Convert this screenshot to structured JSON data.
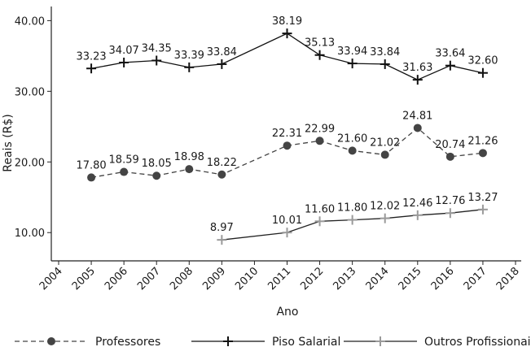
{
  "chart_data": {
    "type": "line",
    "xlabel": "Ano",
    "ylabel": "Reais (R$)",
    "x_ticks": [
      2004,
      2005,
      2006,
      2007,
      2008,
      2009,
      2010,
      2011,
      2012,
      2013,
      2014,
      2015,
      2016,
      2017,
      2018
    ],
    "y_ticks": [
      "10.00",
      "20.00",
      "30.00",
      "40.00"
    ],
    "xlim": [
      2004,
      2018
    ],
    "ylim": [
      6,
      42
    ],
    "legend_position": "bottom",
    "grid": false,
    "series": [
      {
        "name": "Professores",
        "style": "dashed",
        "marker": "circle",
        "color": "#444444",
        "x": [
          2005,
          2006,
          2007,
          2008,
          2009,
          2011,
          2012,
          2013,
          2014,
          2015,
          2016,
          2017
        ],
        "values": [
          17.8,
          18.59,
          18.05,
          18.98,
          18.22,
          22.31,
          22.99,
          21.6,
          21.02,
          24.81,
          20.74,
          21.26
        ],
        "labels": [
          "17.80",
          "18.59",
          "18.05",
          "18.98",
          "18.22",
          "22.31",
          "22.99",
          "21.60",
          "21.02",
          "24.81",
          "20.74",
          "21.26"
        ]
      },
      {
        "name": "Piso Salarial",
        "style": "solid",
        "marker": "plus",
        "color": "#111111",
        "x": [
          2005,
          2006,
          2007,
          2008,
          2009,
          2011,
          2012,
          2013,
          2014,
          2015,
          2016,
          2017
        ],
        "values": [
          33.23,
          34.07,
          34.35,
          33.39,
          33.84,
          38.19,
          35.13,
          33.94,
          33.84,
          31.63,
          33.64,
          32.6
        ],
        "labels": [
          "33.23",
          "34.07",
          "34.35",
          "33.39",
          "33.84",
          "38.19",
          "35.13",
          "33.94",
          "33.84",
          "31.63",
          "33.64",
          "32.60"
        ]
      },
      {
        "name": "Outros Profissionais",
        "style": "solid",
        "marker": "plus",
        "color": "#9a9a9a",
        "line_color": "#222222",
        "x": [
          2009,
          2011,
          2012,
          2013,
          2014,
          2015,
          2016,
          2017
        ],
        "values": [
          8.97,
          10.01,
          11.6,
          11.8,
          12.02,
          12.46,
          12.76,
          13.27
        ],
        "labels": [
          "8.97",
          "10.01",
          "11.60",
          "11.80",
          "12.02",
          "12.46",
          "12.76",
          "13.27"
        ]
      }
    ]
  }
}
